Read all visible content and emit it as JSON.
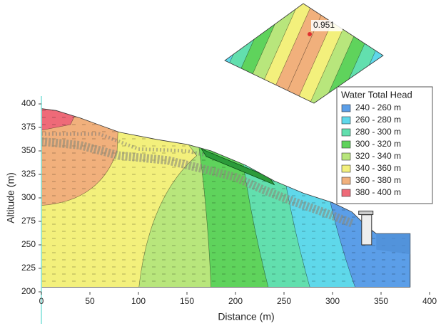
{
  "chart_data": {
    "type": "contour",
    "xlabel": "Distance (m)",
    "ylabel": "Altitude (m)",
    "xlim": [
      0,
      400
    ],
    "ylim": [
      200,
      400
    ],
    "xticks": [
      0,
      50,
      100,
      150,
      200,
      250,
      300,
      350,
      400
    ],
    "yticks": [
      200,
      225,
      250,
      275,
      300,
      325,
      350,
      375,
      400
    ],
    "legend": {
      "title": "Water Total Head",
      "position": "upper right"
    },
    "series": [
      {
        "name": "240 - 260 m",
        "color": "#5b9ee8"
      },
      {
        "name": "260 - 280 m",
        "color": "#5fd8ea"
      },
      {
        "name": "280 - 300 m",
        "color": "#62dfae"
      },
      {
        "name": "300 - 320 m",
        "color": "#5fd35c"
      },
      {
        "name": "320 - 340 m",
        "color": "#b8e67c"
      },
      {
        "name": "340 - 360 m",
        "color": "#f3f07c"
      },
      {
        "name": "360 - 380 m",
        "color": "#f1b07c"
      },
      {
        "name": "380 - 400 m",
        "color": "#ee6a78"
      }
    ],
    "annotation": 0.951
  }
}
